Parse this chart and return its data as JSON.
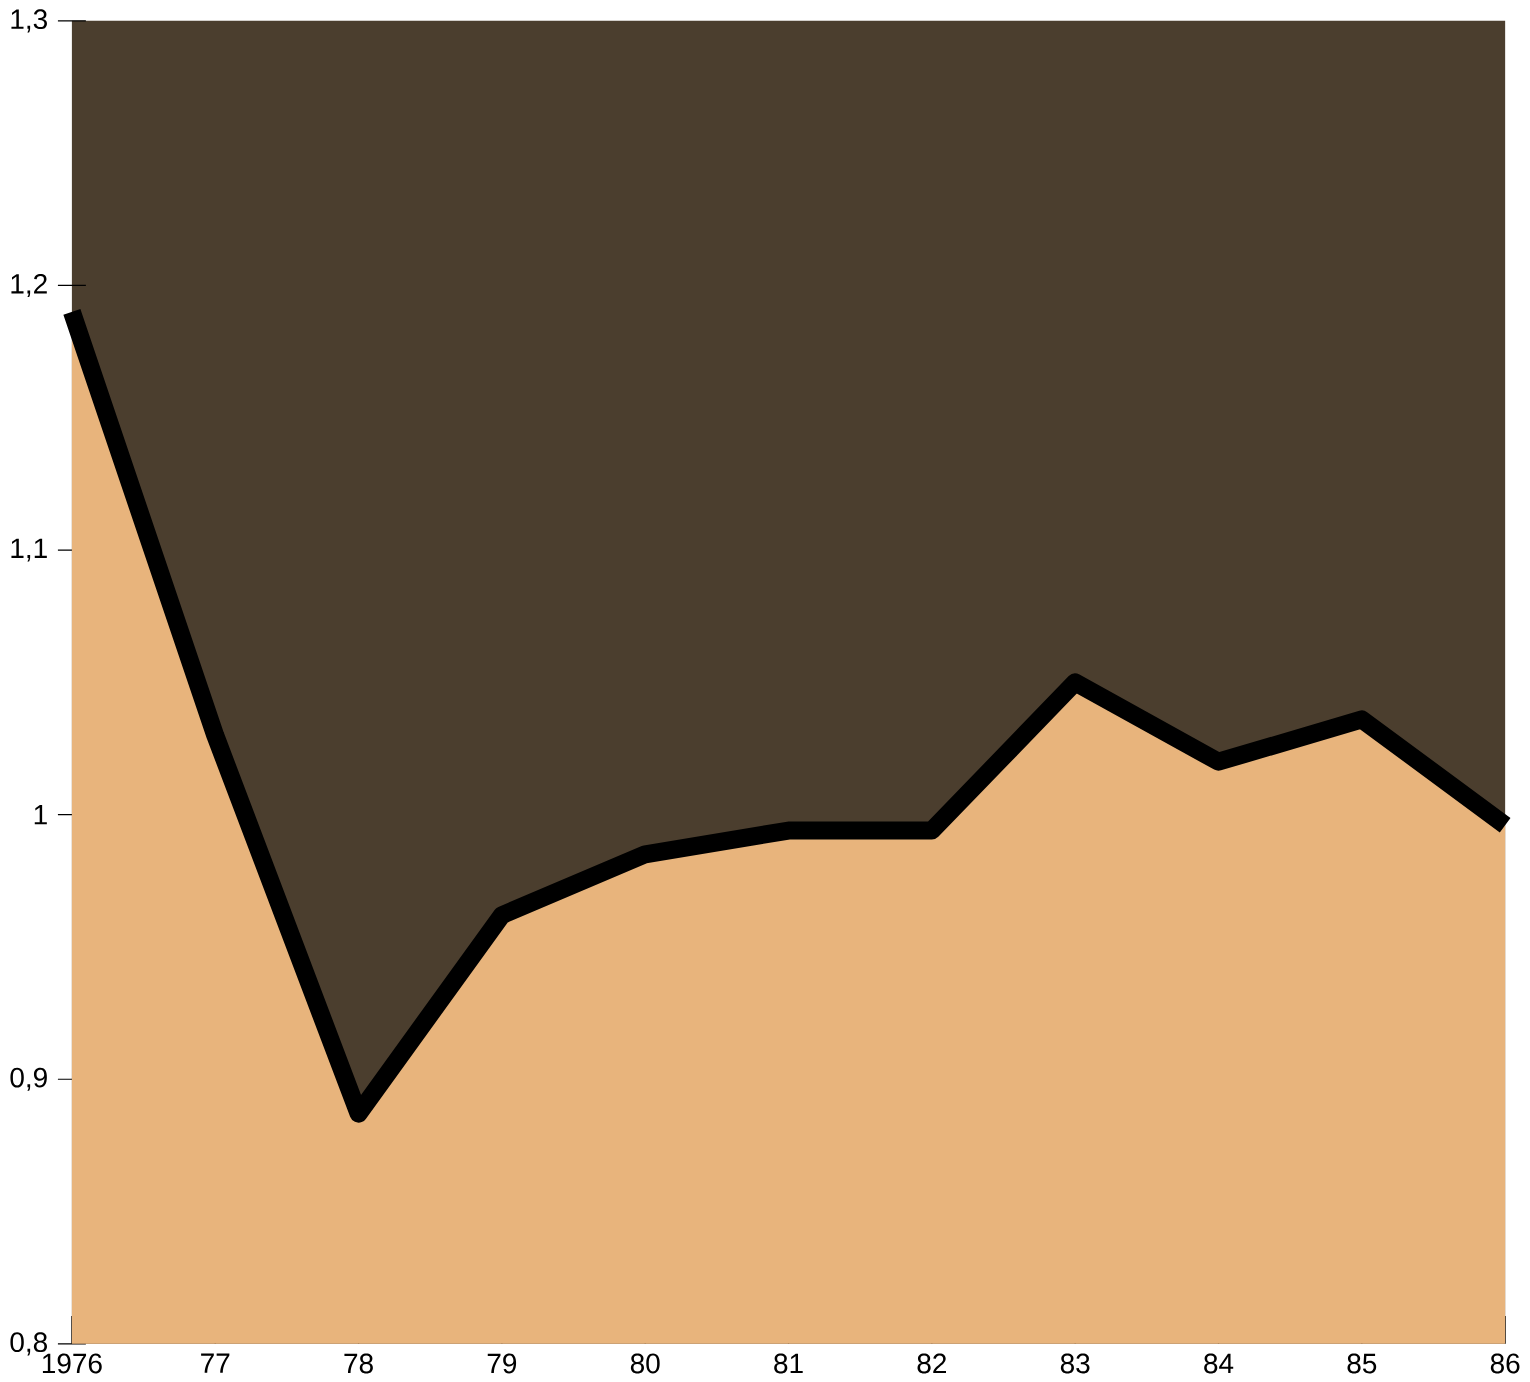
{
  "chart_data": {
    "type": "area",
    "categories": [
      "1976",
      "77",
      "78",
      "79",
      "80",
      "81",
      "82",
      "83",
      "84",
      "85",
      "86"
    ],
    "series": [
      {
        "color": "#e8b47c",
        "values": [
          1.19,
          1.03,
          0.887,
          0.962,
          0.985,
          0.994,
          0.994,
          1.05,
          1.02,
          1.036,
          0.996
        ]
      }
    ],
    "ylim": [
      0.8,
      1.3
    ],
    "yticks": [
      {
        "value": 0.8,
        "label": "0,8"
      },
      {
        "value": 0.9,
        "label": "0,9"
      },
      {
        "value": 1.0,
        "label": "1"
      },
      {
        "value": 1.1,
        "label": "1,1"
      },
      {
        "value": 1.2,
        "label": "1,2"
      },
      {
        "value": 1.3,
        "label": "1,3"
      }
    ],
    "grid": false,
    "marker": "none",
    "line_style": "solid"
  }
}
